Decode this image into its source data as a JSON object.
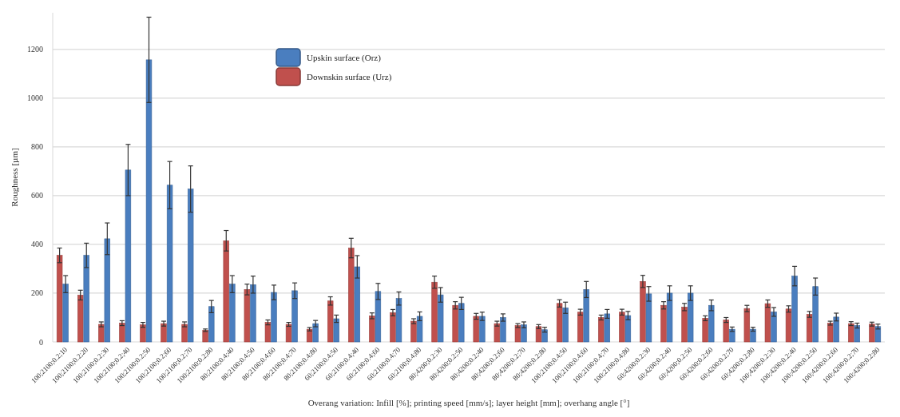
{
  "chart_data": {
    "type": "bar",
    "xlabel": "Overang variation: Infill [%]; printing speed [mm/s]; layer height [mm]; overhang angle [°]",
    "ylabel": "Roughness [µm]",
    "categories": [
      "100;2100;0.2;10",
      "100;2100;0.2;20",
      "100;2100;0.2;30",
      "100;2100;0.2;40",
      "100;2100;0.2;50",
      "100;2100;0.2;60",
      "100;2100;0.2;70",
      "100;2100;0.2;80",
      "80;2100;0.4;40",
      "80;2100;0.4;50",
      "80;2100;0.4;60",
      "80;2100;0.4;70",
      "80;2100;0.4;80",
      "60;2100;0.4;50",
      "60;2100;0.4;40",
      "60;2100;0.4;60",
      "60;2100;0.4;70",
      "60;2100;0.4;80",
      "80;4200;0.2;30",
      "80;4200;0.2;50",
      "80;4200;0.2;40",
      "80;4200;0.2;60",
      "80;4200;0.2;70",
      "80;4200;0.2;80",
      "100;2100;0.4;50",
      "100;2100;0.4;60",
      "100;2100;0.4;70",
      "100;2100;0.4;80",
      "60;4200;0.2;30",
      "60;4200;0.2;40",
      "60;4200;0.2;50",
      "60;4200;0.2;60",
      "60;4200;0.2;70",
      "60;4200;0.2;80",
      "100;4200;0.2;30",
      "100;4200;0.2;40",
      "100;4200;0.2;50",
      "100;4200;0.2;60",
      "100;4200;0.2;70",
      "100;4200;0.2;80"
    ],
    "series": [
      {
        "name": "Downskin surface (Urz)",
        "color": "#c0504d",
        "values": [
          355,
          192,
          72,
          77,
          70,
          75,
          72,
          48,
          415,
          215,
          80,
          72,
          52,
          168,
          385,
          107,
          120,
          85,
          245,
          150,
          105,
          75,
          67,
          63,
          158,
          122,
          100,
          122,
          248,
          150,
          143,
          97,
          90,
          137,
          157,
          135,
          113,
          77,
          75,
          73
        ],
        "errors": [
          30,
          20,
          10,
          10,
          10,
          10,
          10,
          5,
          42,
          22,
          10,
          8,
          7,
          17,
          40,
          12,
          13,
          10,
          25,
          15,
          12,
          10,
          8,
          8,
          15,
          12,
          10,
          12,
          25,
          15,
          15,
          10,
          10,
          13,
          15,
          13,
          12,
          8,
          8,
          8
        ]
      },
      {
        "name": "Upskin surface (Orz)",
        "color": "#4a7ebf",
        "values": [
          237,
          355,
          423,
          705,
          1157,
          643,
          627,
          145,
          237,
          235,
          203,
          210,
          75,
          95,
          308,
          207,
          178,
          105,
          193,
          158,
          105,
          100,
          70,
          50,
          140,
          215,
          115,
          108,
          197,
          200,
          200,
          150,
          52,
          52,
          123,
          270,
          227,
          102,
          67,
          63
        ],
        "errors": [
          35,
          50,
          65,
          105,
          175,
          97,
          95,
          25,
          35,
          35,
          30,
          32,
          13,
          15,
          46,
          33,
          27,
          18,
          30,
          25,
          17,
          15,
          12,
          10,
          23,
          33,
          18,
          17,
          30,
          30,
          30,
          22,
          9,
          8,
          18,
          40,
          35,
          16,
          10,
          10
        ]
      }
    ],
    "ylim": [
      0,
      1350
    ],
    "yticks": [
      0,
      200,
      400,
      600,
      800,
      1000,
      1200
    ],
    "grid": "y",
    "legend": "top left"
  }
}
